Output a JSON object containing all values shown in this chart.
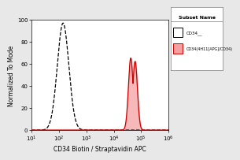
{
  "title": "",
  "xlabel": "CD34 Biotin / Straptavidin APC",
  "ylabel": "Normalized To Mode",
  "xlim_log": [
    10.0,
    1000000.0
  ],
  "ylim": [
    0,
    100
  ],
  "yticks": [
    0,
    20,
    40,
    60,
    80,
    100
  ],
  "ytick_labels": [
    "0",
    "20",
    "40",
    "60",
    "80",
    "100"
  ],
  "legend_title": "Subset Name",
  "legend_entries": [
    "CD34__",
    "CD34(4H11[APG]/CD34)"
  ],
  "background_color": "#e8e8e8",
  "plot_bg_color": "white",
  "dashed_peak_x_log": 2.15,
  "dashed_peak_y": 97,
  "dashed_peak_sigma_log": 0.21,
  "solid_peak_x_log": 4.62,
  "solid_peak_y1": 65,
  "solid_peak_y2": 62,
  "solid_peak2_x_log": 4.78,
  "solid_peak_sigma_log": 0.085,
  "dashed_color": "black",
  "solid_color": "#cc0000",
  "fill_color": "#f4a0a0",
  "fill_alpha": 0.75
}
